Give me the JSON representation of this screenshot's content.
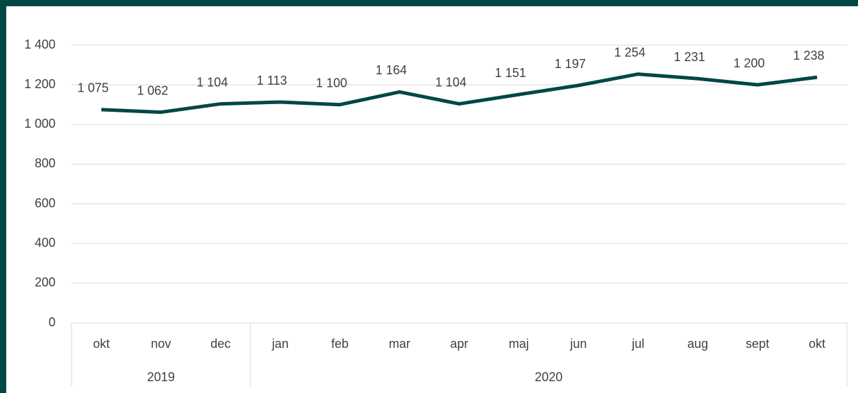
{
  "chart_data": {
    "type": "line",
    "categories": [
      "okt",
      "nov",
      "dec",
      "jan",
      "feb",
      "mar",
      "apr",
      "maj",
      "jun",
      "jul",
      "aug",
      "sept",
      "okt"
    ],
    "groups": [
      {
        "label": "2019",
        "span": 3
      },
      {
        "label": "2020",
        "span": 10
      }
    ],
    "series": [
      {
        "color": "#004746",
        "values": [
          1075,
          1062,
          1104,
          1113,
          1100,
          1164,
          1104,
          1151,
          1197,
          1254,
          1231,
          1200,
          1238
        ],
        "value_labels": [
          "1 075",
          "1 062",
          "1 104",
          "1 113",
          "1 100",
          "1 164",
          "1 104",
          "1 151",
          "1 197",
          "1 254",
          "1 231",
          "1 200",
          "1 238"
        ]
      }
    ],
    "ylim": [
      0,
      1400
    ],
    "yticks": [
      0,
      200,
      400,
      600,
      800,
      {
        "value": 1000,
        "label": "1 000"
      },
      {
        "value": 1200,
        "label": "1 200"
      },
      {
        "value": 1400,
        "label": "1 400"
      }
    ],
    "grid": true
  }
}
